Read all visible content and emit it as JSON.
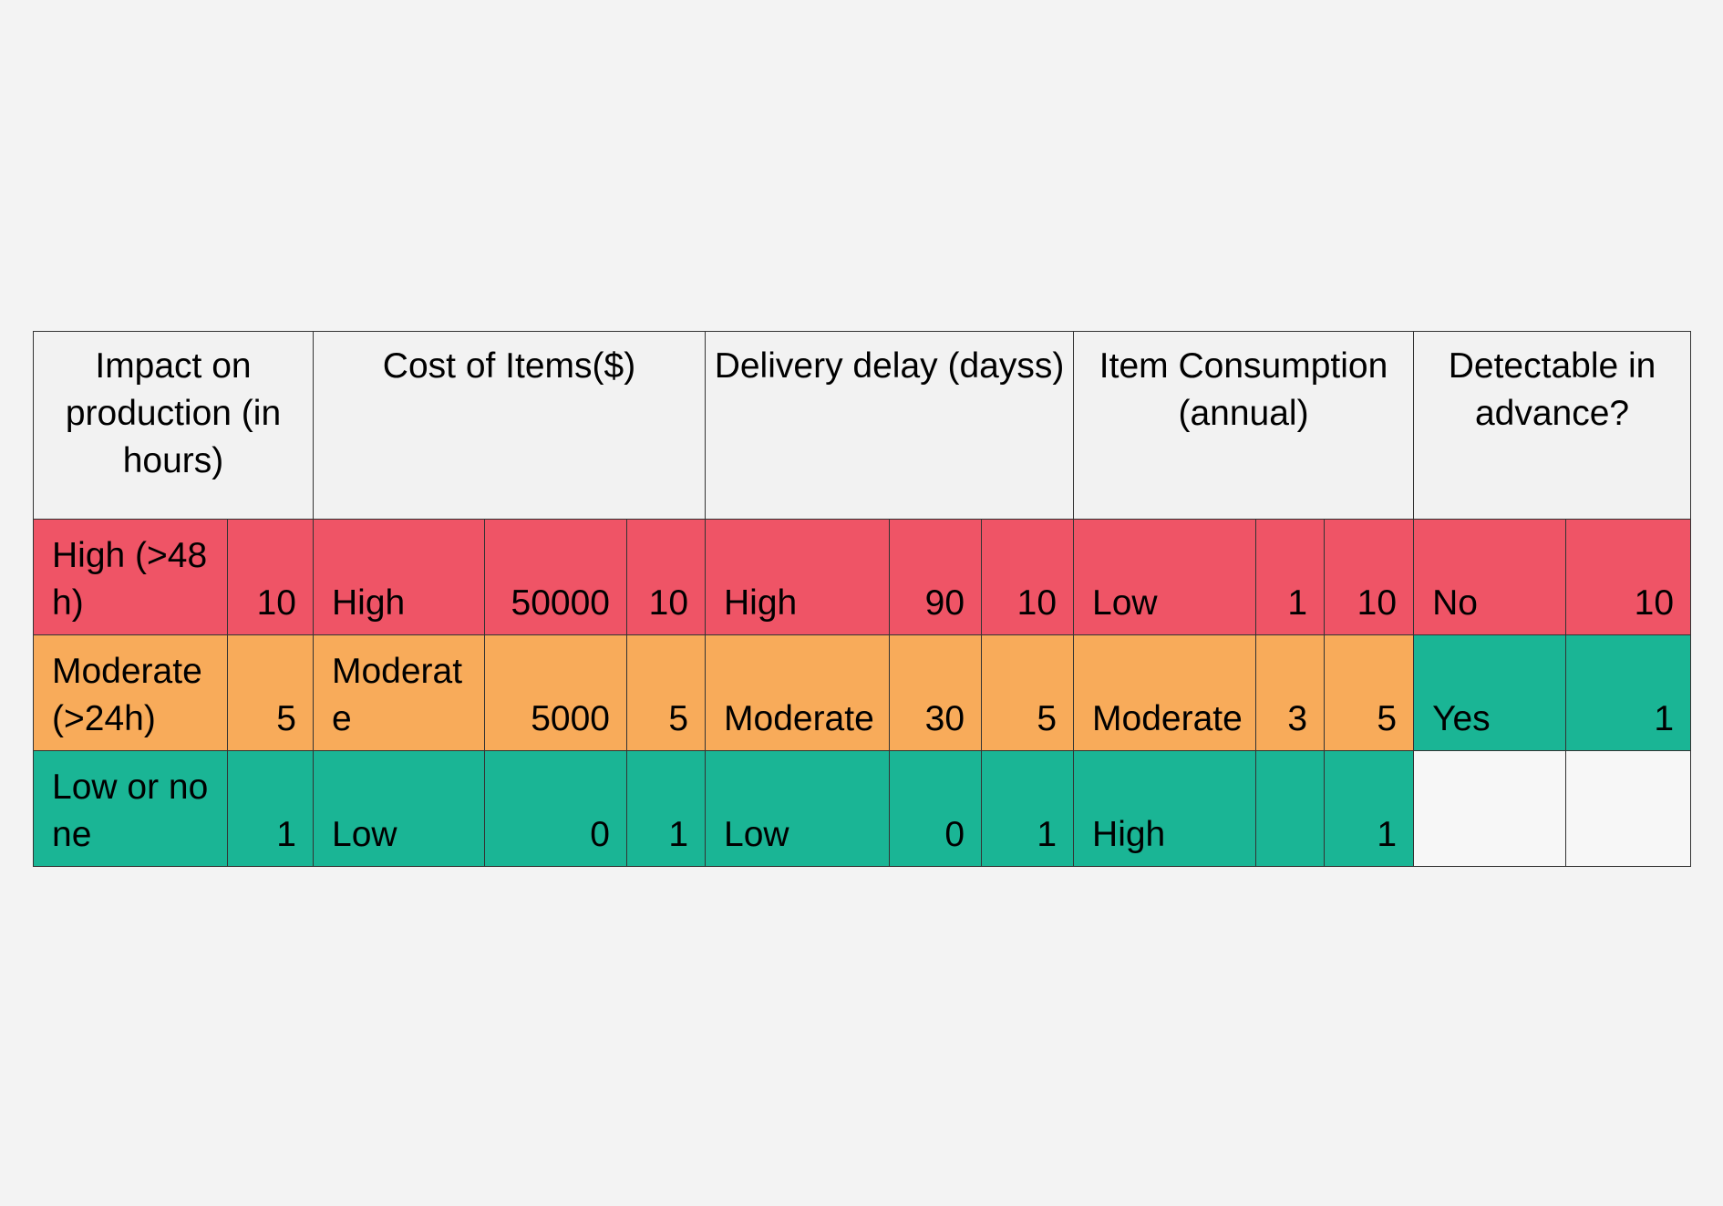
{
  "colors": {
    "high": "#ef5466",
    "moderate": "#f8ab5a",
    "low": "#1ab595",
    "header_bg": "#f2f2f2",
    "page_bg": "#f3f3f3"
  },
  "headers": {
    "impact": "Impact on production (in hours)",
    "cost": "Cost of Items($)",
    "delay": "Delivery delay (dayss)",
    "consumption": "Item Consumption (annual)",
    "detectable": "Detectable in advance?"
  },
  "rows": [
    {
      "impact": {
        "label": "High (>48h)",
        "score": "10"
      },
      "cost": {
        "label": "High",
        "value": "50000",
        "score": "10"
      },
      "delay": {
        "label": "High",
        "value": "90",
        "score": "10"
      },
      "consumption": {
        "label": "Low",
        "value": "1",
        "score": "10"
      },
      "detectable": {
        "label": "No",
        "score": "10"
      }
    },
    {
      "impact": {
        "label": "Moderate (>24h)",
        "score": "5"
      },
      "cost": {
        "label": "Moderate",
        "value": "5000",
        "score": "5"
      },
      "delay": {
        "label": "Moderate",
        "value": "30",
        "score": "5"
      },
      "consumption": {
        "label": "Moderate",
        "value": "3",
        "score": "5"
      },
      "detectable": {
        "label": "Yes",
        "score": "1"
      }
    },
    {
      "impact": {
        "label": "Low or none",
        "score": "1"
      },
      "cost": {
        "label": "Low",
        "value": "0",
        "score": "1"
      },
      "delay": {
        "label": "Low",
        "value": "0",
        "score": "1"
      },
      "consumption": {
        "label": "High",
        "value": "",
        "score": "1"
      },
      "detectable": {
        "label": "",
        "score": ""
      }
    }
  ]
}
